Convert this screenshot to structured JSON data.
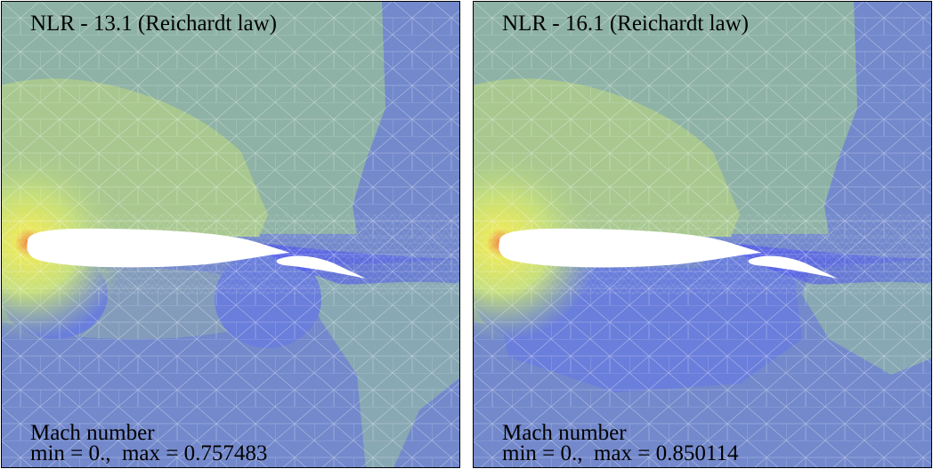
{
  "panels": [
    {
      "title": "NLR - 13.1 (Reichardt law)",
      "field_label": "Mach number",
      "range_label": "min = 0.,  max = 0.757483"
    },
    {
      "title": "NLR - 16.1 (Reichardt law)",
      "field_label": "Mach number",
      "range_label": "min = 0.,  max = 0.850114"
    }
  ]
}
